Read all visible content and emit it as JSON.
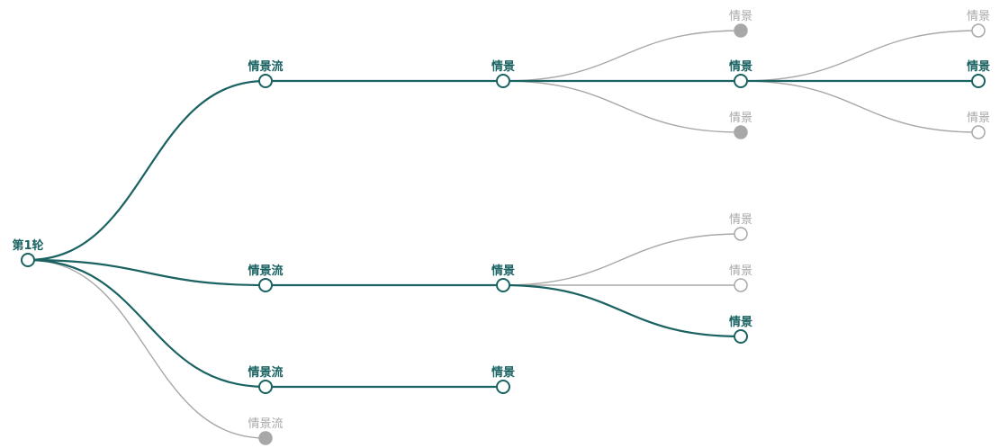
{
  "colors": {
    "active": "#1b6262",
    "inactive": "#a8a8a8",
    "background": "#ffffff"
  },
  "tree": {
    "id": "root",
    "label": "第1轮",
    "state": "active",
    "fill": "open",
    "children": [
      {
        "id": "b1",
        "label": "情景流",
        "state": "active",
        "fill": "open",
        "children": [
          {
            "id": "b1-1",
            "label": "情景",
            "state": "active",
            "fill": "open",
            "children": [
              {
                "id": "b1-1-a",
                "label": "情景",
                "state": "inactive",
                "fill": "filled"
              },
              {
                "id": "b1-1-b",
                "label": "情景",
                "state": "active",
                "fill": "open",
                "children": [
                  {
                    "id": "b1-1-b-a",
                    "label": "情景",
                    "state": "inactive",
                    "fill": "open"
                  },
                  {
                    "id": "b1-1-b-b",
                    "label": "情景",
                    "state": "active",
                    "fill": "open"
                  },
                  {
                    "id": "b1-1-b-c",
                    "label": "情景",
                    "state": "inactive",
                    "fill": "open"
                  }
                ]
              },
              {
                "id": "b1-1-c",
                "label": "情景",
                "state": "inactive",
                "fill": "filled"
              }
            ]
          }
        ]
      },
      {
        "id": "b2",
        "label": "情景流",
        "state": "active",
        "fill": "open",
        "children": [
          {
            "id": "b2-1",
            "label": "情景",
            "state": "active",
            "fill": "open",
            "children": [
              {
                "id": "b2-1-a",
                "label": "情景",
                "state": "inactive",
                "fill": "open"
              },
              {
                "id": "b2-1-b",
                "label": "情景",
                "state": "inactive",
                "fill": "open"
              },
              {
                "id": "b2-1-c",
                "label": "情景",
                "state": "active",
                "fill": "open"
              }
            ]
          }
        ]
      },
      {
        "id": "b3",
        "label": "情景流",
        "state": "active",
        "fill": "open",
        "children": [
          {
            "id": "b3-1",
            "label": "情景",
            "state": "active",
            "fill": "open"
          }
        ]
      },
      {
        "id": "b4",
        "label": "情景流",
        "state": "inactive",
        "fill": "filled"
      }
    ]
  }
}
